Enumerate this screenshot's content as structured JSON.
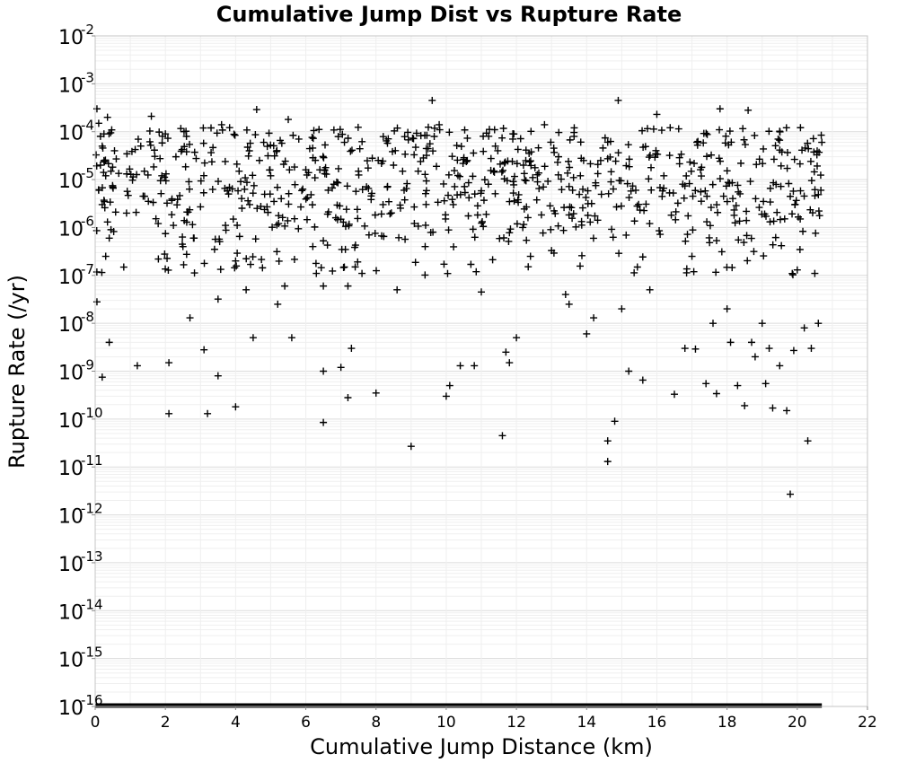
{
  "chart_data": {
    "type": "scatter",
    "title": "Cumulative Jump Dist vs Rupture Rate",
    "xlabel": "Cumulative Jump Distance (km)",
    "ylabel": "Rupture Rate (/yr)",
    "xlim": [
      0,
      22
    ],
    "ylim_log10": [
      -16,
      -2
    ],
    "y_scale": "log",
    "grid": true,
    "marker": "+",
    "marker_color": "#000000",
    "x_ticks": [
      "0",
      "2",
      "4",
      "6",
      "8",
      "10",
      "12",
      "14",
      "16",
      "18",
      "20",
      "22"
    ],
    "y_ticks": [
      {
        "base": "10",
        "exp": "-2"
      },
      {
        "base": "10",
        "exp": "-3"
      },
      {
        "base": "10",
        "exp": "-4"
      },
      {
        "base": "10",
        "exp": "-5"
      },
      {
        "base": "10",
        "exp": "-6"
      },
      {
        "base": "10",
        "exp": "-7"
      },
      {
        "base": "10",
        "exp": "-8"
      },
      {
        "base": "10",
        "exp": "-9"
      },
      {
        "base": "10",
        "exp": "-10"
      },
      {
        "base": "10",
        "exp": "-11"
      },
      {
        "base": "10",
        "exp": "-12"
      },
      {
        "base": "10",
        "exp": "-13"
      },
      {
        "base": "10",
        "exp": "-14"
      },
      {
        "base": "10",
        "exp": "-15"
      },
      {
        "base": "10",
        "exp": "-16"
      }
    ],
    "series": [
      {
        "points": [
          [
            0.05,
            0.0003
          ],
          [
            0.1,
            0.00015
          ],
          [
            0.15,
            8e-05
          ],
          [
            0.2,
            5e-05
          ],
          [
            0.25,
            2.5e-05
          ],
          [
            0.3,
            1.2e-05
          ],
          [
            0.1,
            6e-06
          ],
          [
            0.2,
            3e-06
          ],
          [
            0.35,
            1.3e-06
          ],
          [
            0.4,
            6e-07
          ],
          [
            0.3,
            2.5e-07
          ],
          [
            0.45,
            1.5e-05
          ],
          [
            0.5,
            7e-06
          ],
          [
            0.05,
            2.8e-08
          ],
          [
            0.4,
            4e-09
          ],
          [
            0.2,
            7.5e-10
          ],
          [
            0.6,
            2.7e-05
          ],
          [
            0.35,
            0.0002
          ],
          [
            0.25,
            9e-05
          ],
          [
            0.55,
            4e-05
          ],
          [
            0.15,
            2e-05
          ],
          [
            0.45,
            9e-07
          ],
          [
            1.2,
            1.3e-09
          ],
          [
            1.4,
            1.5e-05
          ],
          [
            1.6,
            0.00021
          ],
          [
            1.8,
            2.2e-07
          ],
          [
            1.9,
            1.2e-05
          ],
          [
            2.0,
            9e-05
          ],
          [
            2.1,
            1.3e-10
          ],
          [
            2.1,
            1.5e-09
          ],
          [
            2.3,
            3e-05
          ],
          [
            2.5,
            4e-07
          ],
          [
            2.6,
            8e-05
          ],
          [
            2.7,
            1.3e-08
          ],
          [
            2.8,
            6e-07
          ],
          [
            3.0,
            2.7e-06
          ],
          [
            3.1,
            2.8e-09
          ],
          [
            3.2,
            1.3e-10
          ],
          [
            3.3,
            0.00012
          ],
          [
            3.4,
            3.5e-07
          ],
          [
            3.5,
            3.2e-08
          ],
          [
            3.5,
            8e-10
          ],
          [
            3.6,
            0.00014
          ],
          [
            3.8,
            5e-06
          ],
          [
            4.0,
            1.8e-10
          ],
          [
            4.0,
            2e-07
          ],
          [
            4.1,
            1.5e-05
          ],
          [
            4.3,
            5e-08
          ],
          [
            4.4,
            3e-06
          ],
          [
            4.5,
            5e-09
          ],
          [
            4.6,
            0.00029
          ],
          [
            4.8,
            6e-05
          ],
          [
            5.0,
            1.2e-05
          ],
          [
            5.2,
            2.5e-08
          ],
          [
            5.3,
            4e-06
          ],
          [
            5.4,
            6e-08
          ],
          [
            5.5,
            0.00018
          ],
          [
            5.6,
            5e-09
          ],
          [
            5.8,
            7e-05
          ],
          [
            6.0,
            1.6e-05
          ],
          [
            6.2,
            4e-07
          ],
          [
            6.3,
            1.1e-07
          ],
          [
            6.4,
            1.6e-05
          ],
          [
            6.5,
            1e-09
          ],
          [
            6.5,
            8.5e-11
          ],
          [
            6.5,
            6e-08
          ],
          [
            6.8,
            8e-06
          ],
          [
            7.0,
            1.2e-09
          ],
          [
            7.1,
            6e-05
          ],
          [
            7.2,
            2.8e-10
          ],
          [
            7.2,
            6e-08
          ],
          [
            7.3,
            3e-09
          ],
          [
            7.5,
            1.5e-05
          ],
          [
            7.6,
            1.1e-07
          ],
          [
            7.8,
            7e-07
          ],
          [
            8.0,
            3.5e-10
          ],
          [
            8.2,
            3e-06
          ],
          [
            8.5,
            2e-05
          ],
          [
            8.6,
            5e-08
          ],
          [
            8.8,
            6e-06
          ],
          [
            9.0,
            2.7e-11
          ],
          [
            9.2,
            1.5e-05
          ],
          [
            9.4,
            4e-07
          ],
          [
            9.6,
            0.00045
          ],
          [
            9.8,
            0.00014
          ],
          [
            10.0,
            3e-10
          ],
          [
            10.1,
            5e-10
          ],
          [
            10.2,
            3e-06
          ],
          [
            10.4,
            1.3e-09
          ],
          [
            10.6,
            2.5e-05
          ],
          [
            10.8,
            1.3e-09
          ],
          [
            11.0,
            4.5e-08
          ],
          [
            11.2,
            8e-06
          ],
          [
            11.4,
            5e-05
          ],
          [
            11.6,
            4.5e-11
          ],
          [
            11.7,
            2.5e-09
          ],
          [
            11.8,
            1.5e-09
          ],
          [
            12.0,
            5e-09
          ],
          [
            12.2,
            2e-05
          ],
          [
            12.4,
            2.5e-07
          ],
          [
            12.6,
            9e-06
          ],
          [
            12.8,
            0.00014
          ],
          [
            13.0,
            3.3e-07
          ],
          [
            13.2,
            3e-05
          ],
          [
            13.4,
            4e-08
          ],
          [
            13.5,
            2.5e-08
          ],
          [
            13.6,
            6e-06
          ],
          [
            14.0,
            6e-09
          ],
          [
            14.2,
            1.3e-08
          ],
          [
            14.4,
            2.5e-05
          ],
          [
            14.6,
            1.3e-11
          ],
          [
            14.6,
            3.5e-11
          ],
          [
            14.8,
            9e-11
          ],
          [
            14.9,
            0.00045
          ],
          [
            15.0,
            2e-08
          ],
          [
            15.2,
            1e-09
          ],
          [
            15.4,
            6e-06
          ],
          [
            15.6,
            6.5e-10
          ],
          [
            15.8,
            5e-08
          ],
          [
            16.0,
            0.00023
          ],
          [
            16.2,
            1.2e-05
          ],
          [
            16.5,
            3.3e-10
          ],
          [
            16.8,
            3e-09
          ],
          [
            17.0,
            2.5e-07
          ],
          [
            17.1,
            2.9e-09
          ],
          [
            17.4,
            5.5e-10
          ],
          [
            17.6,
            1e-08
          ],
          [
            17.7,
            3.4e-10
          ],
          [
            17.8,
            0.0003
          ],
          [
            17.9,
            4.5e-06
          ],
          [
            18.0,
            2e-08
          ],
          [
            18.1,
            4e-09
          ],
          [
            18.3,
            5e-10
          ],
          [
            18.5,
            1.9e-10
          ],
          [
            18.6,
            0.00028
          ],
          [
            18.7,
            4e-09
          ],
          [
            18.8,
            2e-09
          ],
          [
            19.0,
            1e-08
          ],
          [
            19.1,
            5.5e-10
          ],
          [
            19.2,
            3e-09
          ],
          [
            19.3,
            1.7e-10
          ],
          [
            19.5,
            1.3e-09
          ],
          [
            19.7,
            1.5e-10
          ],
          [
            19.8,
            2.7e-12
          ],
          [
            19.9,
            2.7e-09
          ],
          [
            20.0,
            1.3e-07
          ],
          [
            20.2,
            8e-09
          ],
          [
            20.3,
            3.5e-11
          ],
          [
            20.4,
            3e-09
          ],
          [
            20.5,
            1.1e-07
          ],
          [
            20.6,
            1e-08
          ],
          [
            20.7,
            6e-05
          ]
        ],
        "dense_band": {
          "x_range": [
            0,
            20.7
          ],
          "y_log10_range": [
            -6.3,
            -3.9
          ],
          "count": 700,
          "extra_sparse": [
            {
              "y_log10_range": [
                -7.0,
                -6.3
              ],
              "count": 70
            }
          ]
        },
        "floor_line": {
          "x_range": [
            0,
            20.7
          ],
          "y": 1e-16
        }
      }
    ]
  }
}
